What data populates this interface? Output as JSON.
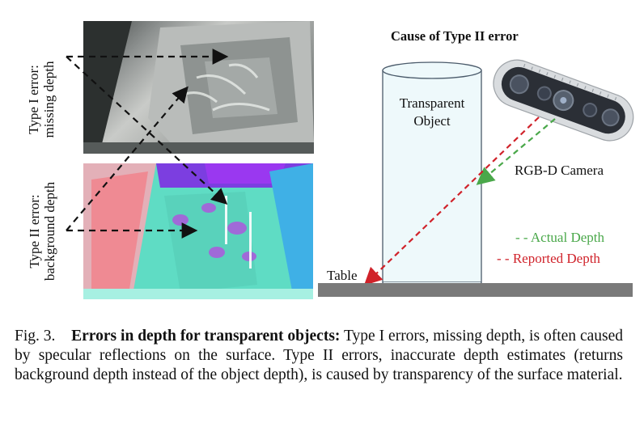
{
  "left_panel": {
    "type1_label_line1": "Type I error:",
    "type1_label_line2": "missing depth",
    "type2_label_line1": "Type II error:",
    "type2_label_line2": "background depth"
  },
  "right_panel": {
    "title": "Cause of Type II error",
    "object_label_line1": "Transparent",
    "object_label_line2": "Object",
    "camera_label": "RGB-D Camera",
    "table_label": "Table",
    "legend_actual": "- - Actual Depth",
    "legend_reported": "- - Reported Depth"
  },
  "colors": {
    "actual": "#4aa84a",
    "reported": "#d0222a",
    "table": "#7a7a7a"
  },
  "caption": {
    "prefix": "Fig. 3.",
    "bold": "Errors in depth for transparent objects:",
    "text": " Type I errors, missing depth, is often caused by specular reflections on the surface. Type II errors, inaccurate depth estimates (returns background depth instead of the object depth), is caused by transparency of the surface material."
  }
}
